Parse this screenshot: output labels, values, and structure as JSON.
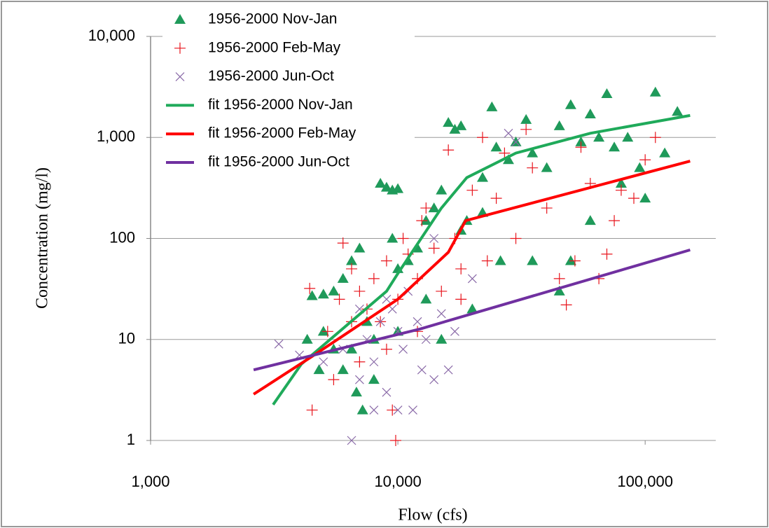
{
  "chart_data": {
    "type": "scatter",
    "xlabel": "Flow (cfs)",
    "ylabel": "Concentration (mg/l)",
    "xscale": "log",
    "yscale": "log",
    "grid": true,
    "legend": "top-left",
    "xlim": [
      1000,
      193000
    ],
    "xticks": [
      {
        "value": 1000,
        "label": "1,000"
      },
      {
        "value": 10000,
        "label": "10,000"
      },
      {
        "value": 100000,
        "label": "100,000"
      }
    ],
    "ylim": [
      1,
      10000
    ],
    "yticks": [
      1,
      10,
      100,
      {
        "value": 1000,
        "label": "1,000"
      },
      {
        "value": 10000,
        "label": "10,000"
      }
    ],
    "series": [
      {
        "name": "1956-2000 Nov-Jan",
        "marker": "triangle",
        "color": "#1f9a5a",
        "x": [
          4300,
          4500,
          5000,
          5500,
          6000,
          6500,
          7000,
          6800,
          7200,
          6000,
          5500,
          8000,
          8500,
          9000,
          9500,
          10000,
          9500,
          10000,
          11000,
          12000,
          13000,
          14000,
          15000,
          16000,
          17000,
          18000,
          19000,
          20000,
          22000,
          24000,
          25000,
          28000,
          30000,
          33000,
          35000,
          40000,
          45000,
          50000,
          55000,
          60000,
          65000,
          70000,
          75000,
          85000,
          95000,
          110000,
          120000,
          135000,
          50000,
          45000,
          35000,
          60000,
          80000,
          26000,
          22000,
          18000,
          7500,
          5000,
          4800,
          6500,
          8000,
          10000,
          13000,
          15000,
          100000
        ],
        "values": [
          10,
          27,
          28,
          30,
          40,
          60,
          80,
          3,
          2,
          5,
          8,
          10,
          350,
          320,
          300,
          310,
          100,
          50,
          60,
          80,
          150,
          200,
          300,
          1400,
          1200,
          1300,
          150,
          20,
          400,
          2000,
          800,
          600,
          900,
          1500,
          700,
          500,
          1300,
          2100,
          900,
          1700,
          1000,
          2700,
          800,
          1000,
          500,
          2800,
          700,
          1800,
          60,
          30,
          60,
          150,
          350,
          60,
          180,
          120,
          15,
          12,
          5,
          8,
          4,
          12,
          25,
          10,
          250
        ]
      },
      {
        "name": "1956-2000 Feb-May",
        "marker": "plus",
        "color": "#e8141c",
        "x": [
          4500,
          4400,
          5200,
          5800,
          6000,
          6500,
          7000,
          7500,
          8000,
          8500,
          9000,
          9500,
          9800,
          10000,
          10500,
          11000,
          12000,
          12500,
          13000,
          14000,
          15000,
          16000,
          17000,
          18000,
          20000,
          22000,
          25000,
          27000,
          30000,
          33000,
          35000,
          40000,
          45000,
          48000,
          52000,
          55000,
          60000,
          65000,
          70000,
          75000,
          80000,
          90000,
          100000,
          110000,
          23000,
          18000,
          9000,
          7000,
          5500,
          12000,
          6500
        ],
        "values": [
          2,
          32,
          12,
          25,
          90,
          50,
          30,
          20,
          40,
          15,
          60,
          2,
          1,
          25,
          100,
          70,
          40,
          150,
          200,
          80,
          30,
          750,
          100,
          50,
          300,
          1000,
          250,
          700,
          100,
          1200,
          500,
          200,
          40,
          22,
          60,
          800,
          350,
          40,
          70,
          150,
          300,
          250,
          600,
          1000,
          60,
          25,
          8,
          6,
          4,
          12,
          15
        ]
      },
      {
        "name": "1956-2000 Jun-Oct",
        "marker": "x",
        "color": "#8a6aa8",
        "x": [
          3300,
          4000,
          5000,
          6500,
          7000,
          7500,
          8000,
          8500,
          9000,
          9500,
          10000,
          10500,
          11000,
          11500,
          12000,
          12500,
          13000,
          14000,
          15000,
          16000,
          17000,
          20000,
          28000,
          30000,
          14000,
          9000,
          10000,
          7000,
          6000,
          8000
        ],
        "values": [
          9,
          7,
          6,
          1,
          4,
          10,
          6,
          15,
          3,
          20,
          2,
          8,
          30,
          2,
          15,
          5,
          10,
          4,
          18,
          5,
          12,
          40,
          1100,
          900,
          100,
          25,
          12,
          20,
          8,
          2
        ]
      },
      {
        "name": "fit 1956-2000 Nov-Jan",
        "marker": "line",
        "color": "#1faa5a",
        "x": [
          3130,
          4070,
          9000,
          10000,
          15000,
          19000,
          30000,
          60000,
          152000
        ],
        "values": [
          2.26,
          5.7,
          30,
          45,
          200,
          400,
          700,
          1100,
          1650
        ]
      },
      {
        "name": "fit 1956-2000 Feb-May",
        "marker": "line",
        "color": "#ff0000",
        "x": [
          2610,
          4500,
          10000,
          16000,
          18800,
          152000
        ],
        "values": [
          2.87,
          6.8,
          25,
          73,
          150,
          583
        ]
      },
      {
        "name": "fit 1956-2000 Jun-Oct",
        "marker": "line",
        "color": "#7030a0",
        "x": [
          2610,
          12300,
          152000
        ],
        "values": [
          5.0,
          12.7,
          77
        ]
      }
    ]
  }
}
